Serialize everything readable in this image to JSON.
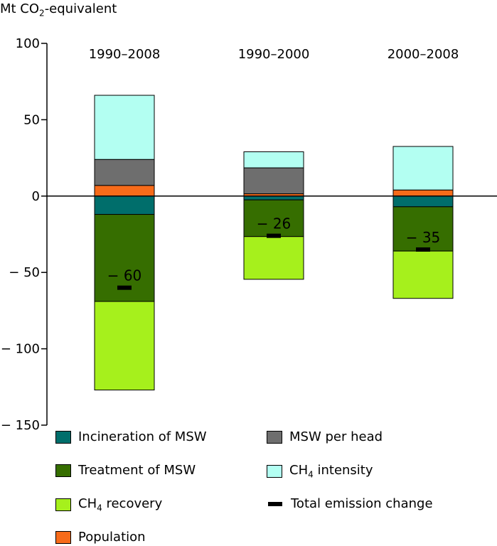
{
  "chart_data": {
    "type": "bar",
    "stacked": true,
    "ylabel": "Mt CO2-equivalent",
    "ylabel_main": "Mt CO",
    "ylabel_sub": "2",
    "ylabel_suffix": "-equivalent",
    "ylim": [
      -150,
      100
    ],
    "yticks": [
      100,
      50,
      0,
      -50,
      -100,
      -150
    ],
    "ytick_labels": [
      "100",
      "50",
      "0",
      "− 50",
      "− 100",
      "− 150"
    ],
    "categories": [
      "1990–2008",
      "1990–2000",
      "2000–2008"
    ],
    "series": [
      {
        "name": "Incineration of MSW",
        "color": "#006e6b",
        "values": [
          -12,
          -2.5,
          -7
        ]
      },
      {
        "name": "Treatment of MSW",
        "color": "#366e00",
        "values": [
          -57,
          -24,
          -29
        ]
      },
      {
        "name": "CH4 recovery",
        "color": "#a6f01c",
        "values": [
          -58,
          -28,
          -31
        ]
      },
      {
        "name": "Population",
        "color": "#f76b1a",
        "values": [
          7,
          1.5,
          4
        ]
      },
      {
        "name": "MSW per head",
        "color": "#6e6e6e",
        "values": [
          17,
          17,
          0
        ]
      },
      {
        "name": "CH4 intensity",
        "color": "#b3fff2",
        "values": [
          42,
          10.5,
          28.5
        ]
      }
    ],
    "total_emission_change": {
      "name": "Total emission change",
      "values": [
        -60,
        -26,
        -35
      ],
      "labels": [
        "− 60",
        "− 26",
        "− 35"
      ]
    }
  },
  "legend": {
    "incineration": "Incineration of MSW",
    "msw_per_head": "MSW per head",
    "treatment": "Treatment of MSW",
    "ch4_intensity_main": "CH",
    "ch4_intensity_sub": "4",
    "ch4_intensity_suffix": " intensity",
    "ch4_recovery_main": "CH",
    "ch4_recovery_sub": "4",
    "ch4_recovery_suffix": " recovery",
    "total_change": "Total emission change",
    "population": "Population"
  }
}
